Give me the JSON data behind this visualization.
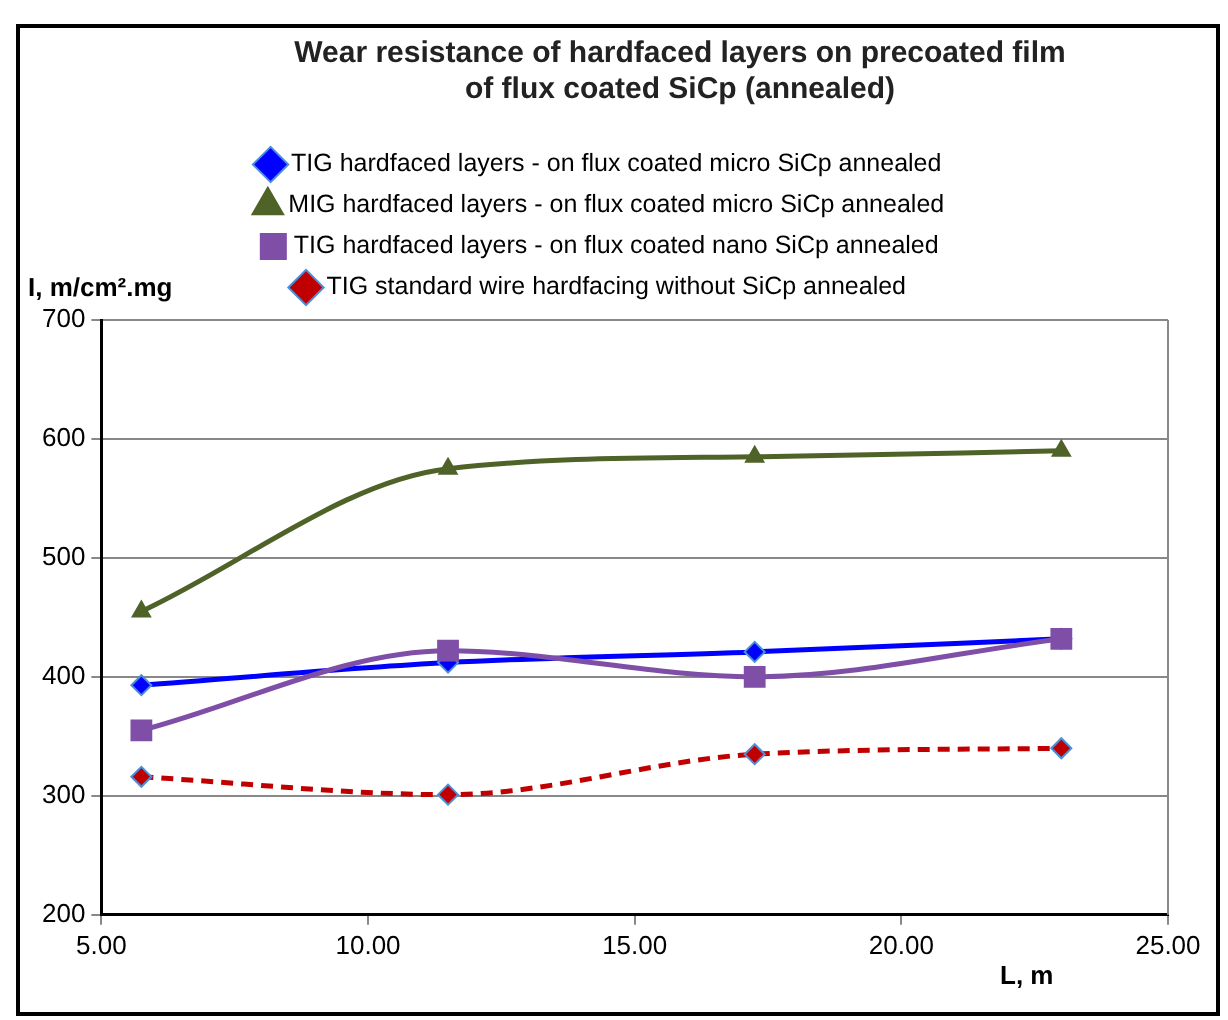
{
  "chart_data": {
    "type": "line",
    "title": "Wear resistance of hardfaced layers on precoated film of flux coated SiCp (annealed)",
    "xlabel": "L, m",
    "ylabel": "I, m/cm².mg",
    "x": [
      5.75,
      11.5,
      17.25,
      23
    ],
    "series": [
      {
        "name": "TIG hardfaced layers - on flux coated micro SiCp annealed",
        "color": "#0000ff",
        "marker": "diamond",
        "line_style": "solid",
        "values": [
          393,
          412,
          421,
          432
        ]
      },
      {
        "name": "MIG hardfaced layers - on flux coated micro SiCp annealed",
        "color": "#4f6228",
        "marker": "triangle",
        "line_style": "solid",
        "values": [
          455,
          575,
          585,
          590
        ]
      },
      {
        "name": "TIG hardfaced layers - on flux coated nano SiCp annealed",
        "color": "#7f4fa8",
        "marker": "square",
        "line_style": "solid",
        "values": [
          355,
          422,
          400,
          432
        ]
      },
      {
        "name": "TIG standard wire hardfacing without SiCp annealed",
        "color": "#c00000",
        "marker": "diamond",
        "line_style": "dashed",
        "values": [
          316,
          301,
          335,
          340
        ]
      }
    ],
    "xlim": [
      5,
      25
    ],
    "xticks": [
      {
        "value": 5,
        "label": "5.00"
      },
      {
        "value": 10,
        "label": "10.00"
      },
      {
        "value": 15,
        "label": "15.00"
      },
      {
        "value": 20,
        "label": "20.00"
      },
      {
        "value": 25,
        "label": "25.00"
      }
    ],
    "ylim": [
      200,
      700
    ],
    "yticks": [
      200,
      300,
      400,
      500,
      600,
      700
    ],
    "grid": "y",
    "legend": "top"
  }
}
